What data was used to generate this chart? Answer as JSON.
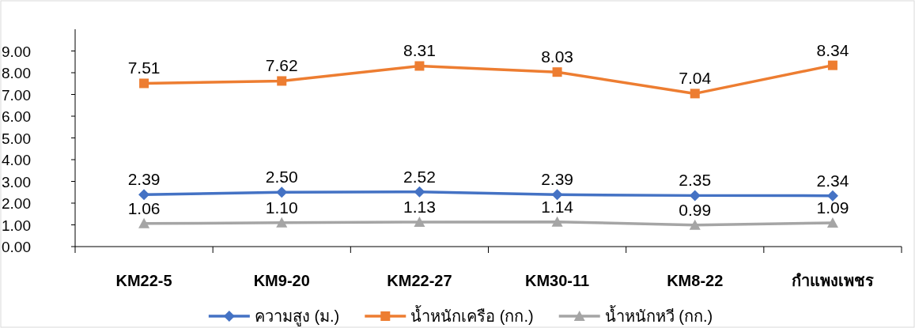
{
  "chart_data": {
    "type": "line",
    "categories": [
      "KM22-5",
      "KM9-20",
      "KM22-27",
      "KM30-11",
      "KM8-22",
      "กำแพงเพชร"
    ],
    "series": [
      {
        "name": "ความสูง (ม.)",
        "color": "#4472c4",
        "marker": "diamond",
        "values": [
          2.39,
          2.5,
          2.52,
          2.39,
          2.35,
          2.34
        ],
        "value_labels": [
          "2.39",
          "2.50",
          "2.52",
          "2.39",
          "2.35",
          "2.34"
        ]
      },
      {
        "name": "น้ำหนักเครือ (กก.)",
        "color": "#ed7d31",
        "marker": "square",
        "values": [
          7.51,
          7.62,
          8.31,
          8.03,
          7.04,
          8.34
        ],
        "value_labels": [
          "7.51",
          "7.62",
          "8.31",
          "8.03",
          "7.04",
          "8.34"
        ]
      },
      {
        "name": "น้ำหนักหวี (กก.)",
        "color": "#a5a5a5",
        "marker": "triangle",
        "values": [
          1.06,
          1.1,
          1.13,
          1.14,
          0.99,
          1.09
        ],
        "value_labels": [
          "1.06",
          "1.10",
          "1.13",
          "1.14",
          "0.99",
          "1.09"
        ]
      }
    ],
    "ylim": [
      0,
      10
    ],
    "yticks": [
      {
        "value": 0,
        "label": "0.00"
      },
      {
        "value": 1,
        "label": "1.00"
      },
      {
        "value": 2,
        "label": "2.00"
      },
      {
        "value": 3,
        "label": "3.00"
      },
      {
        "value": 4,
        "label": "4.00"
      },
      {
        "value": 5,
        "label": "5.00"
      },
      {
        "value": 6,
        "label": "6.00"
      },
      {
        "value": 7,
        "label": "7.00"
      },
      {
        "value": 8,
        "label": "8.00"
      },
      {
        "value": 9,
        "label": "9.00"
      }
    ],
    "grid": false,
    "legend": "bottom"
  }
}
